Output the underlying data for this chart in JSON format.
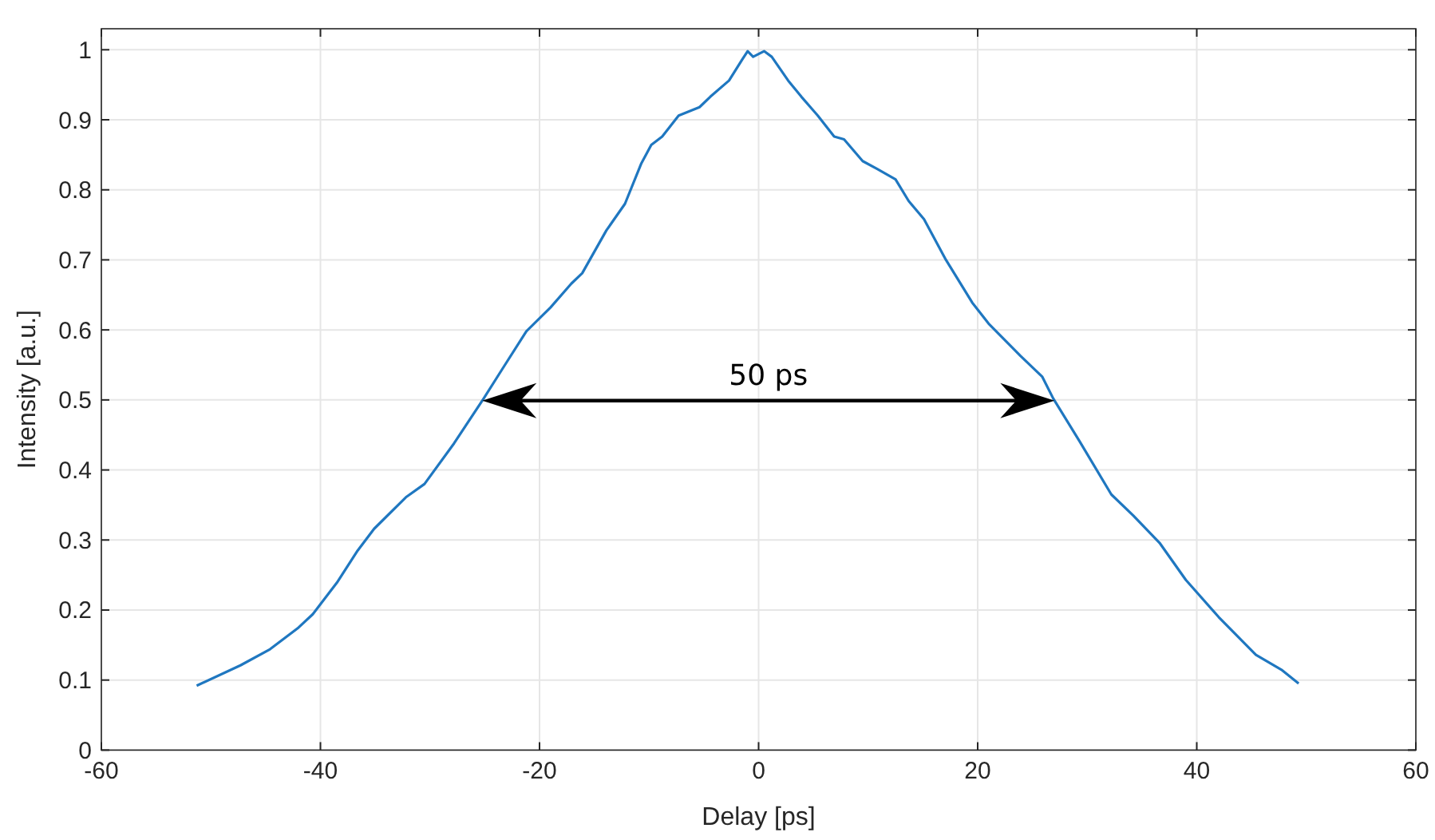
{
  "chart_data": {
    "type": "line",
    "xlabel": "Delay [ps]",
    "ylabel": "Intensity [a.u.]",
    "xlim": [
      -60,
      60
    ],
    "xticks": [
      -60,
      -40,
      -20,
      0,
      20,
      40,
      60
    ],
    "ylim": [
      0,
      1.03
    ],
    "yticks": [
      0,
      0.1,
      0.2,
      0.3,
      0.4,
      0.5,
      0.6,
      0.7,
      0.8,
      0.9,
      1
    ],
    "grid": true,
    "marker": "none",
    "line_style": "solid",
    "annotations": [
      "50 ps"
    ],
    "series": [
      {
        "color": "#1f77c0",
        "x": [
          -51.3,
          -47.3,
          -44.6,
          -42.0,
          -40.7,
          -38.5,
          -36.6,
          -35.1,
          -32.2,
          -30.5,
          -27.8,
          -25.1,
          -23.4,
          -21.2,
          -19.0,
          -17.1,
          -16.1,
          -13.9,
          -12.2,
          -10.7,
          -9.8,
          -8.8,
          -7.3,
          -5.4,
          -4.4,
          -2.7,
          -1.5,
          -1.0,
          -0.5,
          0.5,
          1.2,
          2.7,
          3.9,
          5.4,
          6.9,
          7.8,
          9.5,
          10.8,
          12.5,
          13.7,
          15.1,
          17.1,
          19.5,
          21.0,
          23.9,
          25.9,
          26.9,
          29.3,
          32.2,
          34.2,
          36.6,
          39.0,
          42.0,
          45.4,
          47.8,
          49.3
        ],
        "values": [
          0.092,
          0.121,
          0.144,
          0.175,
          0.194,
          0.239,
          0.285,
          0.316,
          0.361,
          0.38,
          0.438,
          0.502,
          0.544,
          0.598,
          0.632,
          0.666,
          0.681,
          0.742,
          0.78,
          0.838,
          0.864,
          0.876,
          0.906,
          0.918,
          0.933,
          0.956,
          0.986,
          0.998,
          0.99,
          0.998,
          0.99,
          0.956,
          0.933,
          0.906,
          0.876,
          0.872,
          0.841,
          0.83,
          0.815,
          0.784,
          0.758,
          0.7,
          0.639,
          0.609,
          0.563,
          0.533,
          0.502,
          0.441,
          0.365,
          0.335,
          0.296,
          0.243,
          0.19,
          0.136,
          0.114,
          0.095
        ]
      }
    ]
  }
}
